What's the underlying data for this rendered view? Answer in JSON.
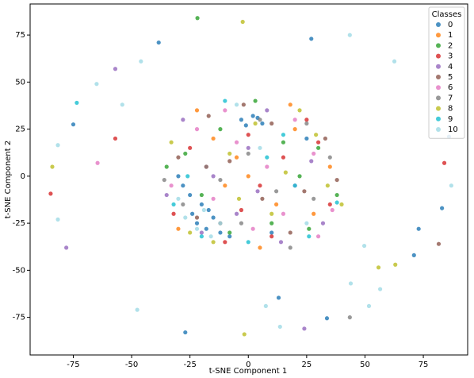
{
  "chart_data": {
    "type": "scatter",
    "xlabel": "t-SNE Component 1",
    "ylabel": "t-SNE Component 2",
    "xlim": [
      -93.5,
      94
    ],
    "ylim": [
      -95,
      91.5
    ],
    "xticks": [
      -75,
      -50,
      -25,
      0,
      25,
      50,
      75
    ],
    "yticks": [
      -75,
      -50,
      -25,
      0,
      25,
      50,
      75
    ],
    "grid": false,
    "legend_title": "Classes",
    "legend_position": "upper right",
    "series": [
      {
        "name": "0",
        "color": "#1f77b4",
        "x": [
          -25,
          -22,
          -18,
          -15,
          -12,
          -20,
          -28,
          -8,
          -3,
          2,
          6,
          -1,
          4,
          -30,
          -17,
          10,
          -24,
          25,
          -38.4,
          27,
          -75,
          -27,
          13,
          33.7,
          71,
          73,
          83,
          86
        ],
        "y": [
          -10,
          -25,
          -28,
          -22,
          -30,
          -15,
          -5,
          -32,
          30,
          32,
          28,
          27,
          31,
          0,
          -18,
          -30,
          -20,
          20,
          71,
          73,
          27.5,
          -83,
          -64.6,
          -75.5,
          -42,
          -28,
          -17,
          21
        ]
      },
      {
        "name": "1",
        "color": "#ff7f0e",
        "x": [
          -30,
          -15,
          5,
          20,
          35,
          -5,
          12,
          -22,
          28,
          0,
          -10,
          18
        ],
        "y": [
          -28,
          20,
          -38,
          25,
          5,
          10,
          -15,
          35,
          -20,
          0,
          -5,
          38
        ]
      },
      {
        "name": "2",
        "color": "#2ca02c",
        "x": [
          -20,
          10,
          30,
          -35,
          3,
          -8,
          22,
          38,
          -12,
          15,
          -27,
          26,
          -21.8
        ],
        "y": [
          -10,
          -25,
          15,
          5,
          40,
          -30,
          0,
          -10,
          25,
          18,
          12,
          -28,
          84
        ]
      },
      {
        "name": "3",
        "color": "#d62728",
        "x": [
          -25,
          5,
          25,
          -10,
          15,
          35,
          -32,
          0,
          30,
          -18,
          10,
          -3,
          -57,
          -84.7,
          84
        ],
        "y": [
          15,
          -5,
          30,
          -35,
          10,
          -15,
          -20,
          22,
          18,
          5,
          -32,
          -18,
          20,
          -9.3,
          7
        ]
      },
      {
        "name": "4",
        "color": "#9467bd",
        "x": [
          -28,
          -5,
          20,
          8,
          32,
          -15,
          0,
          -35,
          14,
          27,
          -20,
          4,
          -57,
          -78,
          24
        ],
        "y": [
          30,
          -20,
          -5,
          35,
          -25,
          0,
          15,
          -10,
          -35,
          8,
          -30,
          -8,
          57,
          -38,
          -81
        ]
      },
      {
        "name": "5",
        "color": "#8c564b",
        "x": [
          -12,
          18,
          -30,
          6,
          33,
          -2,
          24,
          -22,
          10,
          -8,
          38,
          -17,
          81.6
        ],
        "y": [
          -25,
          -30,
          10,
          -12,
          20,
          38,
          -8,
          -22,
          28,
          8,
          -2,
          32,
          -36
        ]
      },
      {
        "name": "6",
        "color": "#e377c2",
        "x": [
          -33,
          -10,
          15,
          28,
          2,
          -22,
          36,
          8,
          -5,
          20,
          -15,
          30,
          -64.6
        ],
        "y": [
          -5,
          35,
          -20,
          12,
          -28,
          25,
          -18,
          5,
          18,
          30,
          -12,
          -32,
          7
        ]
      },
      {
        "name": "7",
        "color": "#7f7f7f",
        "x": [
          -18,
          12,
          -3,
          25,
          -28,
          35,
          5,
          -12,
          18,
          -36,
          28,
          0,
          43.5
        ],
        "y": [
          5,
          -8,
          -25,
          28,
          -15,
          10,
          30,
          -2,
          -38,
          -2,
          -12,
          12,
          -75
        ]
      },
      {
        "name": "8",
        "color": "#bcbd22",
        "x": [
          -8,
          22,
          -25,
          10,
          34,
          -15,
          3,
          29,
          -33,
          16,
          -4,
          40,
          -2.4,
          -84,
          -1.7,
          55.8,
          63
        ],
        "y": [
          12,
          35,
          -30,
          -20,
          -5,
          -35,
          28,
          22,
          18,
          2,
          -12,
          -15,
          82,
          5,
          -84,
          -48.5,
          -47
        ]
      },
      {
        "name": "9",
        "color": "#17becf",
        "x": [
          -32,
          -20,
          0,
          15,
          -10,
          26,
          38,
          -26,
          8,
          20,
          -73.5
        ],
        "y": [
          -15,
          -32,
          -35,
          22,
          40,
          -32,
          -14,
          0,
          10,
          -5,
          39
        ]
      },
      {
        "name": "10",
        "color": "#9edae5",
        "x": [
          -27,
          -22,
          -16,
          -12,
          -30,
          -19,
          5,
          25,
          -5,
          43.5,
          62.6,
          -46,
          -65,
          -54,
          -81.6,
          -81.6,
          -47.6,
          13.6,
          7.5,
          51.7,
          56.5,
          43.9,
          49.7,
          87
        ],
        "y": [
          -22,
          -28,
          -32,
          -25,
          -12,
          -18,
          15,
          -25,
          38,
          75,
          61,
          61,
          49,
          38,
          16.5,
          -23,
          -71,
          -80,
          -69,
          -69,
          -60,
          -57,
          -37,
          -5
        ]
      }
    ]
  }
}
